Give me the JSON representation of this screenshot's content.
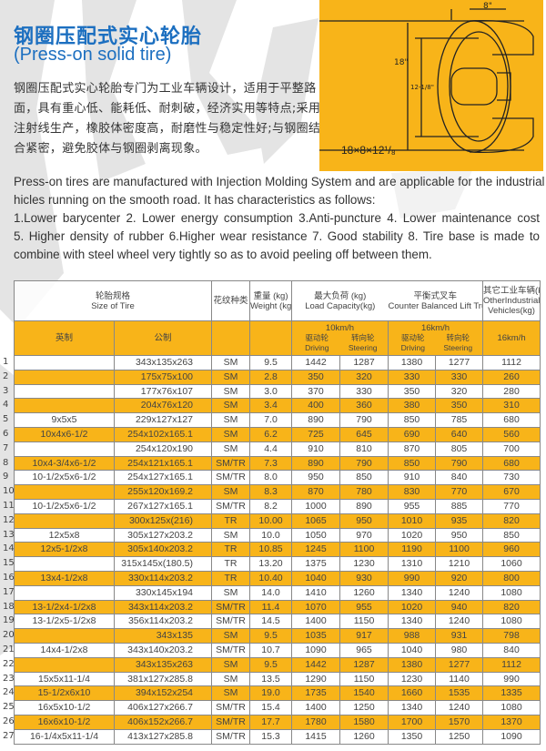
{
  "title_cn": "钢圈压配式实心轮胎",
  "title_en": "(Press-on solid tire)",
  "desc_cn_lines": [
    "钢圈压配式实心轮胎专门为工业车辆设计，适用于平整路",
    "面，具有重心低、能耗低、耐刺破，经济实用等特点;采用",
    "注射线生产，橡胶体密度高，耐磨性与稳定性好;与钢圈结",
    "合紧密，避免胶体与钢圈剥离现象。"
  ],
  "desc_en_lines": [
    "Press-on tires are manufactured with Injection Molding System and are applicable for the industrial ve-",
    "hicles running on the smooth road. It has characteristics as follows:",
    "1.Lower barycenter   2. Lower energy consumption   3.Anti-puncture   4. Lower maintenance cost",
    "5. Higher density of rubber   6.Higher wear resistance   7. Good stability   8. Tire base is made to",
    "combine with steel wheel very tightly so as to avoid peeling off between them."
  ],
  "diagram": {
    "width_label": "8\"",
    "outer_label": "18\"",
    "inner_label": "12-1/8\"",
    "size_label": "18×8×12¹/₈"
  },
  "colors": {
    "accent": "#f8b419",
    "title": "#1c6fc0"
  },
  "table": {
    "header": {
      "size_cn": "轮胎规格",
      "size_en": "Size of Tire",
      "pattern_cn": "花纹种类",
      "weight_cn": "重量 (kg)",
      "weight_en": "Weight (kg)",
      "load_cn": "最大负荷 (kg)",
      "load_en": "Load Capacity(kg)",
      "lift_cn": "平衡式叉车",
      "lift_en": "Counter Balanced Lift Trucks",
      "other_cn": "其它工业车辆(kg)",
      "other_en1": "OtherIndustrial",
      "other_en2": "Vehicles(kg)",
      "imperial": "英制",
      "metric": "公制",
      "speed_10": "10km/h",
      "speed_16": "16km/h",
      "speed_16_other": "16km/h",
      "driving_cn": "驱动轮",
      "steering_cn": "转向轮",
      "driving_en": "Driving",
      "steering_en": "Steering"
    },
    "rows": [
      [
        "1",
        "",
        "343x135x263",
        "SM",
        "9.5",
        "1442",
        "1287",
        "1380",
        "1277",
        "1112"
      ],
      [
        "2",
        "",
        "175x75x100",
        "SM",
        "2.8",
        "350",
        "320",
        "330",
        "330",
        "260"
      ],
      [
        "3",
        "",
        "177x76x107",
        "SM",
        "3.0",
        "370",
        "330",
        "350",
        "320",
        "280"
      ],
      [
        "4",
        "",
        "204x76x120",
        "SM",
        "3.4",
        "400",
        "360",
        "380",
        "350",
        "310"
      ],
      [
        "5",
        "9x5x5",
        "229x127x127",
        "SM",
        "7.0",
        "890",
        "790",
        "850",
        "785",
        "680"
      ],
      [
        "6",
        "10x4x6-1/2",
        "254x102x165.1",
        "SM",
        "6.2",
        "725",
        "645",
        "690",
        "640",
        "560"
      ],
      [
        "7",
        "",
        "254x120x190",
        "SM",
        "4.4",
        "910",
        "810",
        "870",
        "805",
        "700"
      ],
      [
        "8",
        "10x4-3/4x6-1/2",
        "254x121x165.1",
        "SM/TR",
        "7.3",
        "890",
        "790",
        "850",
        "790",
        "680"
      ],
      [
        "9",
        "10-1/2x5x6-1/2",
        "254x127x165.1",
        "SM/TR",
        "8.0",
        "950",
        "850",
        "910",
        "840",
        "730"
      ],
      [
        "10",
        "",
        "255x120x169.2",
        "SM",
        "8.3",
        "870",
        "780",
        "830",
        "770",
        "670"
      ],
      [
        "11",
        "10-1/2x5x6-1/2",
        "267x127x165.1",
        "SM/TR",
        "8.2",
        "1000",
        "890",
        "955",
        "885",
        "770"
      ],
      [
        "12",
        "",
        "300x125x(216)",
        "TR",
        "10.00",
        "1065",
        "950",
        "1010",
        "935",
        "820"
      ],
      [
        "13",
        "12x5x8",
        "305x127x203.2",
        "SM",
        "10.0",
        "1050",
        "970",
        "1020",
        "950",
        "850"
      ],
      [
        "14",
        "12x5-1/2x8",
        "305x140x203.2",
        "TR",
        "10.85",
        "1245",
        "1100",
        "1190",
        "1100",
        "960"
      ],
      [
        "15",
        "",
        "315x145x(180.5)",
        "TR",
        "13.20",
        "1375",
        "1230",
        "1310",
        "1210",
        "1060"
      ],
      [
        "16",
        "13x4-1/2x8",
        "330x114x203.2",
        "TR",
        "10.40",
        "1040",
        "930",
        "990",
        "920",
        "800"
      ],
      [
        "17",
        "",
        "330x145x194",
        "SM",
        "14.0",
        "1410",
        "1260",
        "1340",
        "1240",
        "1080"
      ],
      [
        "18",
        "13-1/2x4-1/2x8",
        "343x114x203.2",
        "SM/TR",
        "11.4",
        "1070",
        "955",
        "1020",
        "940",
        "820"
      ],
      [
        "19",
        "13-1/2x5-1/2x8",
        "356x114x203.2",
        "SM/TR",
        "14.5",
        "1400",
        "1150",
        "1340",
        "1240",
        "1080"
      ],
      [
        "20",
        "",
        "343x135",
        "SM",
        "9.5",
        "1035",
        "917",
        "988",
        "931",
        "798"
      ],
      [
        "21",
        "14x4-1/2x8",
        "343x140x203.2",
        "SM/TR",
        "10.7",
        "1090",
        "965",
        "1040",
        "980",
        "840"
      ],
      [
        "22",
        "",
        "343x135x263",
        "SM",
        "9.5",
        "1442",
        "1287",
        "1380",
        "1277",
        "1112"
      ],
      [
        "23",
        "15x5x11-1/4",
        "381x127x285.8",
        "SM",
        "13.5",
        "1290",
        "1150",
        "1230",
        "1140",
        "990"
      ],
      [
        "24",
        "15-1/2x6x10",
        "394x152x254",
        "SM",
        "19.0",
        "1735",
        "1540",
        "1660",
        "1535",
        "1335"
      ],
      [
        "25",
        "16x5x10-1/2",
        "406x127x266.7",
        "SM/TR",
        "15.4",
        "1400",
        "1250",
        "1340",
        "1240",
        "1080"
      ],
      [
        "26",
        "16x6x10-1/2",
        "406x152x266.7",
        "SM/TR",
        "17.7",
        "1780",
        "1580",
        "1700",
        "1570",
        "1370"
      ],
      [
        "27",
        "16-1/4x5x11-1/4",
        "413x127x285.8",
        "SM/TR",
        "15.3",
        "1415",
        "1260",
        "1350",
        "1250",
        "1090"
      ]
    ]
  }
}
